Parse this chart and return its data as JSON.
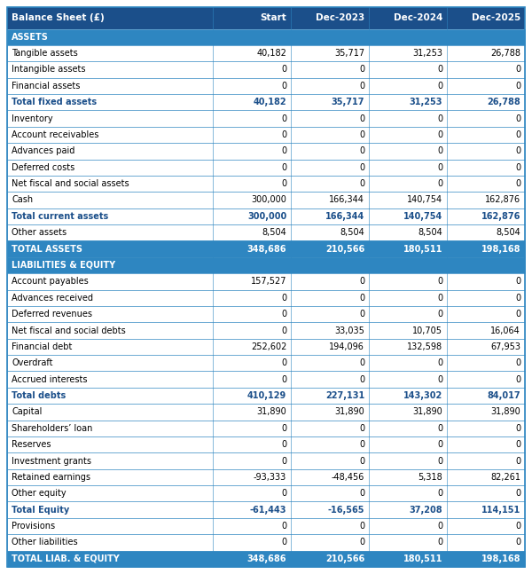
{
  "title_row": [
    "Balance Sheet (£)",
    "Start",
    "Dec-2023",
    "Dec-2024",
    "Dec-2025"
  ],
  "header_bg": "#1b4f8a",
  "header_text": "#ffffff",
  "section_bg": "#2e86c1",
  "section_text": "#ffffff",
  "total_text_color": "#1b4f8a",
  "row_bg": "#ffffff",
  "border_color": "#2e86c1",
  "normal_text": "#000000",
  "rows": [
    {
      "label": "ASSETS",
      "values": [
        "",
        "",
        "",
        ""
      ],
      "type": "section"
    },
    {
      "label": "Tangible assets",
      "values": [
        "40,182",
        "35,717",
        "31,253",
        "26,788"
      ],
      "type": "normal"
    },
    {
      "label": "Intangible assets",
      "values": [
        "0",
        "0",
        "0",
        "0"
      ],
      "type": "normal"
    },
    {
      "label": "Financial assets",
      "values": [
        "0",
        "0",
        "0",
        "0"
      ],
      "type": "normal"
    },
    {
      "label": "Total fixed assets",
      "values": [
        "40,182",
        "35,717",
        "31,253",
        "26,788"
      ],
      "type": "bold"
    },
    {
      "label": "Inventory",
      "values": [
        "0",
        "0",
        "0",
        "0"
      ],
      "type": "normal"
    },
    {
      "label": "Account receivables",
      "values": [
        "0",
        "0",
        "0",
        "0"
      ],
      "type": "normal"
    },
    {
      "label": "Advances paid",
      "values": [
        "0",
        "0",
        "0",
        "0"
      ],
      "type": "normal"
    },
    {
      "label": "Deferred costs",
      "values": [
        "0",
        "0",
        "0",
        "0"
      ],
      "type": "normal"
    },
    {
      "label": "Net fiscal and social assets",
      "values": [
        "0",
        "0",
        "0",
        "0"
      ],
      "type": "normal"
    },
    {
      "label": "Cash",
      "values": [
        "300,000",
        "166,344",
        "140,754",
        "162,876"
      ],
      "type": "normal"
    },
    {
      "label": "Total current assets",
      "values": [
        "300,000",
        "166,344",
        "140,754",
        "162,876"
      ],
      "type": "bold"
    },
    {
      "label": "Other assets",
      "values": [
        "8,504",
        "8,504",
        "8,504",
        "8,504"
      ],
      "type": "normal"
    },
    {
      "label": "TOTAL ASSETS",
      "values": [
        "348,686",
        "210,566",
        "180,511",
        "198,168"
      ],
      "type": "total"
    },
    {
      "label": "LIABILITIES & EQUITY",
      "values": [
        "",
        "",
        "",
        ""
      ],
      "type": "section"
    },
    {
      "label": "Account payables",
      "values": [
        "157,527",
        "0",
        "0",
        "0"
      ],
      "type": "normal"
    },
    {
      "label": "Advances received",
      "values": [
        "0",
        "0",
        "0",
        "0"
      ],
      "type": "normal"
    },
    {
      "label": "Deferred revenues",
      "values": [
        "0",
        "0",
        "0",
        "0"
      ],
      "type": "normal"
    },
    {
      "label": "Net fiscal and social debts",
      "values": [
        "0",
        "33,035",
        "10,705",
        "16,064"
      ],
      "type": "normal"
    },
    {
      "label": "Financial debt",
      "values": [
        "252,602",
        "194,096",
        "132,598",
        "67,953"
      ],
      "type": "normal"
    },
    {
      "label": "Overdraft",
      "values": [
        "0",
        "0",
        "0",
        "0"
      ],
      "type": "normal"
    },
    {
      "label": "Accrued interests",
      "values": [
        "0",
        "0",
        "0",
        "0"
      ],
      "type": "normal"
    },
    {
      "label": "Total debts",
      "values": [
        "410,129",
        "227,131",
        "143,302",
        "84,017"
      ],
      "type": "bold"
    },
    {
      "label": "Capital",
      "values": [
        "31,890",
        "31,890",
        "31,890",
        "31,890"
      ],
      "type": "normal"
    },
    {
      "label": "Shareholders’ loan",
      "values": [
        "0",
        "0",
        "0",
        "0"
      ],
      "type": "normal"
    },
    {
      "label": "Reserves",
      "values": [
        "0",
        "0",
        "0",
        "0"
      ],
      "type": "normal"
    },
    {
      "label": "Investment grants",
      "values": [
        "0",
        "0",
        "0",
        "0"
      ],
      "type": "normal"
    },
    {
      "label": "Retained earnings",
      "values": [
        "-93,333",
        "-48,456",
        "5,318",
        "82,261"
      ],
      "type": "normal"
    },
    {
      "label": "Other equity",
      "values": [
        "0",
        "0",
        "0",
        "0"
      ],
      "type": "normal"
    },
    {
      "label": "Total Equity",
      "values": [
        "-61,443",
        "-16,565",
        "37,208",
        "114,151"
      ],
      "type": "bold"
    },
    {
      "label": "Provisions",
      "values": [
        "0",
        "0",
        "0",
        "0"
      ],
      "type": "normal"
    },
    {
      "label": "Other liabilities",
      "values": [
        "0",
        "0",
        "0",
        "0"
      ],
      "type": "normal"
    },
    {
      "label": "TOTAL LIAB. & EQUITY",
      "values": [
        "348,686",
        "210,566",
        "180,511",
        "198,168"
      ],
      "type": "total"
    }
  ],
  "font_size": 7.0,
  "header_font_size": 7.5
}
